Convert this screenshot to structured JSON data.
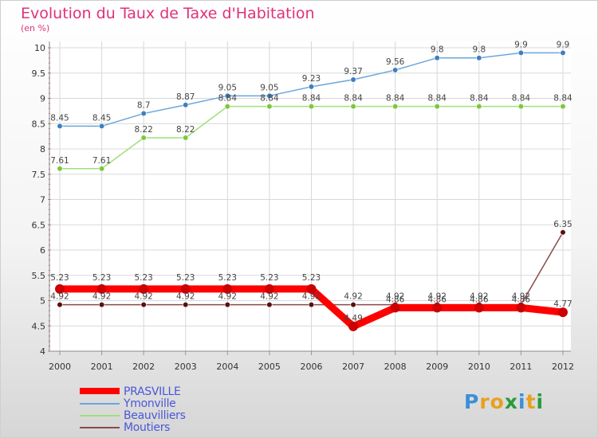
{
  "title": "Evolution du Taux de Taxe d'Habitation",
  "unit": "(en %)",
  "logo": {
    "text": "Proxiti",
    "letter_colors": [
      "#3a8fd8",
      "#e8a020",
      "#e8a020",
      "#2a9a3a",
      "#3a8fd8",
      "#e8a020",
      "#2a9a3a"
    ]
  },
  "chart_data": {
    "type": "line",
    "x": [
      "2000",
      "2001",
      "2002",
      "2003",
      "2004",
      "2005",
      "2006",
      "2007",
      "2008",
      "2009",
      "2010",
      "2011",
      "2012"
    ],
    "ylim": [
      4,
      10
    ],
    "yticks": [
      "4",
      "4.5",
      "5",
      "5.5",
      "6",
      "6.5",
      "7",
      "7.5",
      "8",
      "8.5",
      "9",
      "9.5",
      "10"
    ],
    "grid": true,
    "legend_position": "bottom-left",
    "series": [
      {
        "name": "PRASVILLE",
        "color": "#ff0000",
        "marker_color": "#cc0000",
        "values": [
          5.23,
          5.23,
          5.23,
          5.23,
          5.23,
          5.23,
          5.23,
          4.49,
          4.86,
          4.86,
          4.86,
          4.86,
          4.77
        ],
        "labels": [
          "5.23",
          "5.23",
          "5.23",
          "5.23",
          "5.23",
          "5.23",
          "5.23",
          "4.49",
          "4.86",
          "4.86",
          "4.86",
          "4.86",
          "4.77"
        ]
      },
      {
        "name": "Ymonville",
        "color": "#6aa6dc",
        "marker_color": "#3f7fc0",
        "values": [
          8.45,
          8.45,
          8.7,
          8.87,
          9.05,
          9.05,
          9.23,
          9.37,
          9.56,
          9.8,
          9.8,
          9.9,
          9.9
        ],
        "labels": [
          "8.45",
          "8.45",
          "8.7",
          "8.87",
          "9.05",
          "9.05",
          "9.23",
          "9.37",
          "9.56",
          "9.8",
          "9.8",
          "9.9",
          "9.9"
        ]
      },
      {
        "name": "Beauvilliers",
        "color": "#9ee07a",
        "marker_color": "#7cc83c",
        "values": [
          7.61,
          7.61,
          8.22,
          8.22,
          8.84,
          8.84,
          8.84,
          8.84,
          8.84,
          8.84,
          8.84,
          8.84,
          8.84
        ],
        "labels": [
          "7.61",
          "7.61",
          "8.22",
          "8.22",
          "8.84",
          "8.84",
          "8.84",
          "8.84",
          "8.84",
          "8.84",
          "8.84",
          "8.84",
          "8.84"
        ]
      },
      {
        "name": "Moutiers",
        "color": "#8a4a4a",
        "marker_color": "#5a1010",
        "values": [
          4.92,
          4.92,
          4.92,
          4.92,
          4.92,
          4.92,
          4.92,
          4.92,
          4.92,
          4.92,
          4.92,
          4.92,
          6.35
        ],
        "labels": [
          "4.92",
          "4.92",
          "4.92",
          "4.92",
          "4.92",
          "4.92",
          "4.92",
          "4.92",
          "4.92",
          "4.92",
          "4.92",
          "4.92",
          "6.35"
        ]
      }
    ]
  }
}
